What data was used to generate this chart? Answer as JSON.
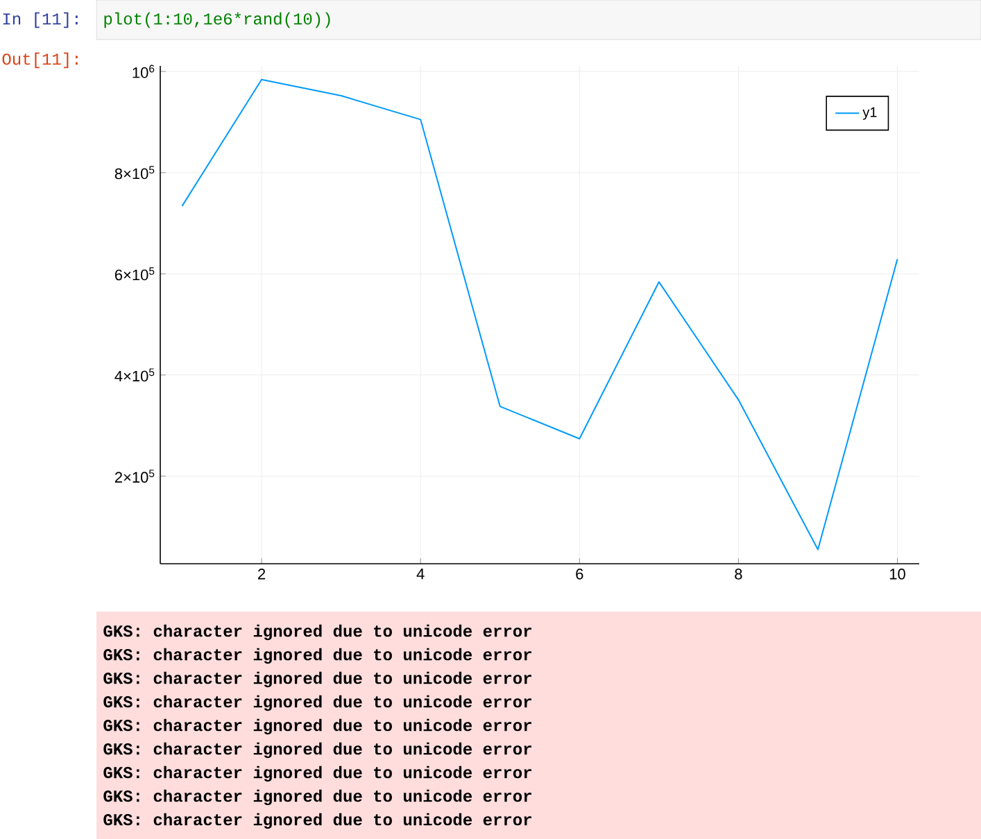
{
  "chart_data": {
    "type": "line",
    "x": [
      1,
      2,
      3,
      4,
      5,
      6,
      7,
      8,
      9,
      10
    ],
    "series": [
      {
        "name": "y1",
        "color": "#009af9",
        "values": [
          734000,
          984000,
          952000,
          905000,
          338000,
          274000,
          584000,
          351000,
          55000,
          629000
        ]
      }
    ],
    "xlim": [
      0.725,
      10.275
    ],
    "ylim": [
      27000,
      1011000
    ],
    "xticks": [
      2,
      4,
      6,
      8,
      10
    ],
    "yticks": [
      {
        "value": 200000,
        "label": "2×10$^{5}$"
      },
      {
        "value": 400000,
        "label": "4×10$^{5}$"
      },
      {
        "value": 600000,
        "label": "6×10$^{5}$"
      },
      {
        "value": 800000,
        "label": "8×10$^{5}$"
      },
      {
        "value": 1000000,
        "label": "10$^{6}$"
      }
    ],
    "grid": true,
    "legend": "top right",
    "marker": "none",
    "line_style": "solid",
    "annotations": [
      "In [11]:",
      "plot(1:10,1e6*rand(10))",
      "Out[11]:",
      "GKS: character ignored due to unicode error",
      "GKS: character ignored due to unicode error",
      "GKS: character ignored due to unicode error",
      "GKS: character ignored due to unicode error",
      "GKS: character ignored due to unicode error",
      "GKS: character ignored due to unicode error",
      "GKS: character ignored due to unicode error",
      "GKS: character ignored due to unicode error",
      "GKS: character ignored due to unicode error"
    ]
  }
}
